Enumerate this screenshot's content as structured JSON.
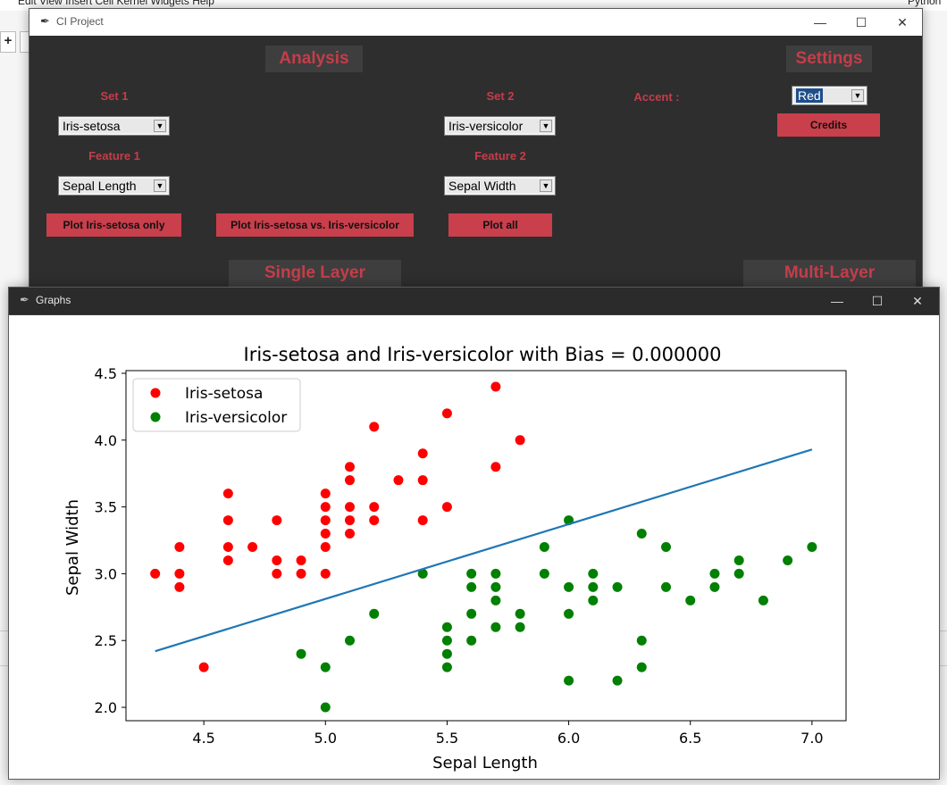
{
  "background_app": {
    "menu_text": "Edit    View    Insert    Cell    Kernel    Widgets    Help",
    "right_text": "Python"
  },
  "main_window": {
    "title": "CI Project",
    "analysis_heading": "Analysis",
    "settings_heading": "Settings",
    "set1_label": "Set 1",
    "set2_label": "Set 2",
    "feature1_label": "Feature 1",
    "feature2_label": "Feature 2",
    "accent_label": "Accent :",
    "set1_value": "Iris-setosa",
    "set2_value": "Iris-versicolor",
    "feature1_value": "Sepal Length",
    "feature2_value": "Sepal Width",
    "accent_value": "Red",
    "credits_button": "Credits",
    "plot_one_button": "Plot Iris-setosa only",
    "plot_vs_button": "Plot Iris-setosa vs. Iris-versicolor",
    "plot_all_button": "Plot all",
    "single_layer_heading": "Single Layer",
    "multi_layer_heading": "Multi-Layer",
    "accent_color": "#c93f4b"
  },
  "graphs_window": {
    "title": "Graphs"
  },
  "chart_data": {
    "type": "scatter",
    "title": "Iris-setosa and Iris-versicolor with Bias = 0.000000",
    "xlabel": "Sepal Length",
    "ylabel": "Sepal Width",
    "xlim": [
      4.18,
      7.14
    ],
    "ylim": [
      1.9,
      4.52
    ],
    "xticks": [
      4.5,
      5.0,
      5.5,
      6.0,
      6.5,
      7.0
    ],
    "xtick_labels": [
      "4.5",
      "5.0",
      "5.5",
      "6.0",
      "6.5",
      "7.0"
    ],
    "yticks": [
      2.0,
      2.5,
      3.0,
      3.5,
      4.0,
      4.5
    ],
    "ytick_labels": [
      "2.0",
      "2.5",
      "3.0",
      "3.5",
      "4.0",
      "4.5"
    ],
    "grid": false,
    "legend_placement": "upper-left",
    "series": [
      {
        "name": "Iris-setosa",
        "color": "#ff0000",
        "points": [
          [
            4.3,
            3.0
          ],
          [
            4.4,
            3.2
          ],
          [
            4.4,
            3.0
          ],
          [
            4.4,
            2.9
          ],
          [
            4.5,
            2.3
          ],
          [
            4.6,
            3.6
          ],
          [
            4.6,
            3.4
          ],
          [
            4.6,
            3.2
          ],
          [
            4.6,
            3.1
          ],
          [
            4.7,
            3.2
          ],
          [
            4.8,
            3.4
          ],
          [
            4.8,
            3.1
          ],
          [
            4.8,
            3.0
          ],
          [
            4.9,
            3.1
          ],
          [
            4.9,
            3.0
          ],
          [
            5.0,
            3.6
          ],
          [
            5.0,
            3.5
          ],
          [
            5.0,
            3.4
          ],
          [
            5.0,
            3.3
          ],
          [
            5.0,
            3.2
          ],
          [
            5.0,
            3.0
          ],
          [
            5.1,
            3.8
          ],
          [
            5.1,
            3.7
          ],
          [
            5.1,
            3.5
          ],
          [
            5.1,
            3.4
          ],
          [
            5.1,
            3.3
          ],
          [
            5.2,
            4.1
          ],
          [
            5.2,
            3.5
          ],
          [
            5.2,
            3.4
          ],
          [
            5.3,
            3.7
          ],
          [
            5.4,
            3.9
          ],
          [
            5.4,
            3.7
          ],
          [
            5.4,
            3.4
          ],
          [
            5.5,
            4.2
          ],
          [
            5.5,
            3.5
          ],
          [
            5.7,
            4.4
          ],
          [
            5.7,
            3.8
          ],
          [
            5.8,
            4.0
          ]
        ]
      },
      {
        "name": "Iris-versicolor",
        "color": "#008000",
        "points": [
          [
            4.9,
            2.4
          ],
          [
            5.0,
            2.3
          ],
          [
            5.0,
            2.0
          ],
          [
            5.1,
            2.5
          ],
          [
            5.2,
            2.7
          ],
          [
            5.4,
            3.0
          ],
          [
            5.5,
            2.6
          ],
          [
            5.5,
            2.5
          ],
          [
            5.5,
            2.4
          ],
          [
            5.5,
            2.3
          ],
          [
            5.6,
            3.0
          ],
          [
            5.6,
            2.9
          ],
          [
            5.6,
            2.7
          ],
          [
            5.6,
            2.5
          ],
          [
            5.7,
            3.0
          ],
          [
            5.7,
            2.9
          ],
          [
            5.7,
            2.8
          ],
          [
            5.7,
            2.6
          ],
          [
            5.8,
            2.7
          ],
          [
            5.8,
            2.6
          ],
          [
            5.9,
            3.2
          ],
          [
            5.9,
            3.0
          ],
          [
            6.0,
            3.4
          ],
          [
            6.0,
            2.9
          ],
          [
            6.0,
            2.7
          ],
          [
            6.0,
            2.2
          ],
          [
            6.1,
            3.0
          ],
          [
            6.1,
            2.9
          ],
          [
            6.1,
            2.8
          ],
          [
            6.2,
            2.9
          ],
          [
            6.2,
            2.2
          ],
          [
            6.3,
            3.3
          ],
          [
            6.3,
            2.5
          ],
          [
            6.3,
            2.3
          ],
          [
            6.4,
            3.2
          ],
          [
            6.4,
            2.9
          ],
          [
            6.5,
            2.8
          ],
          [
            6.6,
            3.0
          ],
          [
            6.6,
            2.9
          ],
          [
            6.7,
            3.1
          ],
          [
            6.7,
            3.0
          ],
          [
            6.8,
            2.8
          ],
          [
            6.9,
            3.1
          ],
          [
            7.0,
            3.2
          ]
        ]
      }
    ],
    "decision_line": {
      "color": "#1f77b4",
      "points": [
        [
          4.3,
          2.42
        ],
        [
          7.0,
          3.93
        ]
      ]
    }
  }
}
